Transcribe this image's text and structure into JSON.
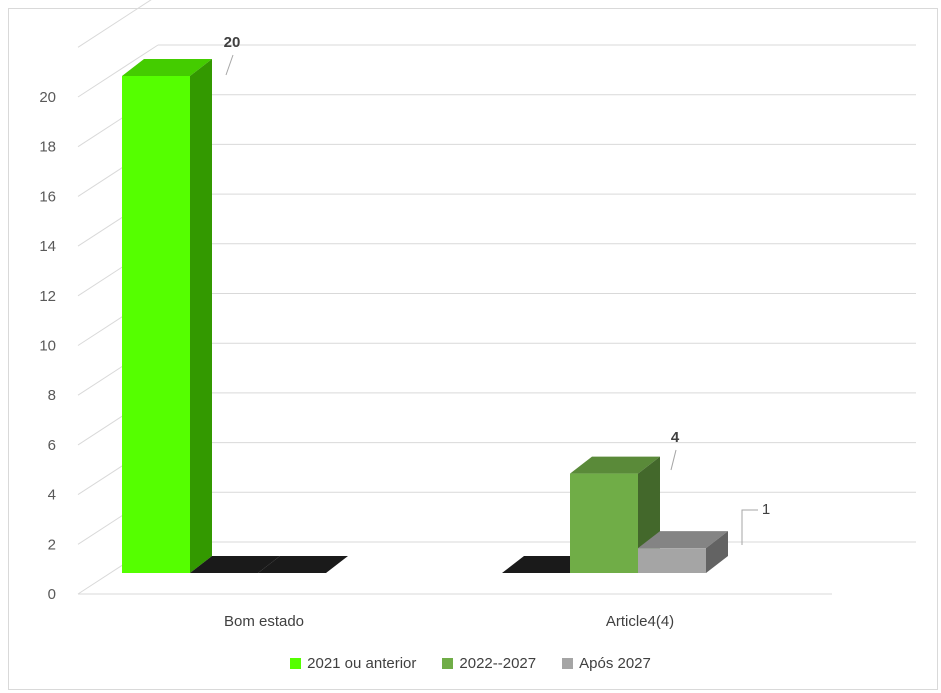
{
  "chart_data": {
    "type": "bar",
    "three_d": true,
    "title": "",
    "xlabel": "",
    "ylabel": "",
    "ylim": [
      0,
      22
    ],
    "y_ticks": [
      0,
      2,
      4,
      6,
      8,
      10,
      12,
      14,
      16,
      18,
      20
    ],
    "grid": true,
    "legend_position": "bottom",
    "categories": [
      "Bom estado",
      "Article4(4)"
    ],
    "series": [
      {
        "name": "2021 ou anterior",
        "values": [
          20,
          0
        ],
        "color": "#55ff00"
      },
      {
        "name": "2022--2027",
        "values": [
          0,
          4
        ],
        "color": "#70ad47"
      },
      {
        "name": "Após 2027",
        "values": [
          0,
          1
        ],
        "color": "#a5a5a5"
      }
    ],
    "data_labels": [
      {
        "series": 0,
        "category": 0,
        "text": "20"
      },
      {
        "series": 1,
        "category": 1,
        "text": "4"
      },
      {
        "series": 2,
        "category": 1,
        "text": "1"
      }
    ]
  }
}
